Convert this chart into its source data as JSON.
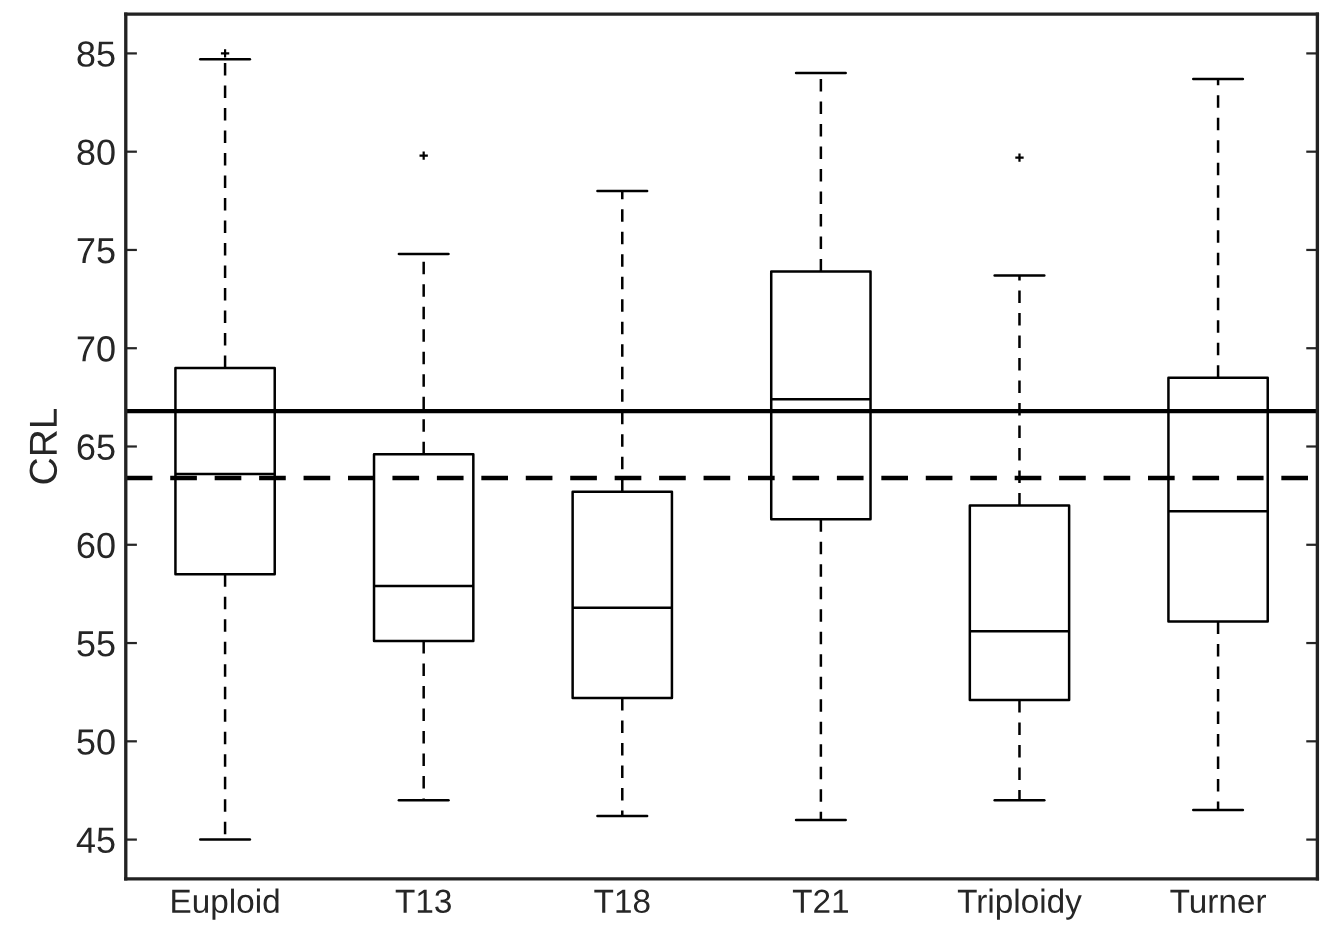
{
  "chart_data": {
    "type": "box",
    "ylabel": "CRL",
    "categories": [
      "Euploid",
      "T13",
      "T18",
      "T21",
      "Triploidy",
      "Turner"
    ],
    "boxes": [
      {
        "low": 45.0,
        "q1": 58.5,
        "median": 63.6,
        "q3": 69.0,
        "high": 84.7,
        "outliers": [
          85.0
        ]
      },
      {
        "low": 47.0,
        "q1": 55.1,
        "median": 57.9,
        "q3": 64.6,
        "high": 74.8,
        "outliers": [
          79.8
        ]
      },
      {
        "low": 46.2,
        "q1": 52.2,
        "median": 56.8,
        "q3": 62.7,
        "high": 78.0
      },
      {
        "low": 46.0,
        "q1": 61.3,
        "median": 67.4,
        "q3": 73.9,
        "high": 84.0
      },
      {
        "low": 47.0,
        "q1": 52.1,
        "median": 55.6,
        "q3": 62.0,
        "high": 73.7,
        "outliers": [
          79.7
        ]
      },
      {
        "low": 46.5,
        "q1": 56.1,
        "median": 61.7,
        "q3": 68.5,
        "high": 83.7
      }
    ],
    "color": "#000000",
    "ylim": [
      43,
      87
    ],
    "yticks": [
      45,
      50,
      55,
      60,
      65,
      70,
      75,
      80,
      85
    ],
    "ref_lines": [
      {
        "axis": "y",
        "value": 66.8,
        "color": "#000000",
        "line_style": "solid"
      },
      {
        "axis": "y",
        "value": 63.4,
        "color": "#000000",
        "line_style": "dashed"
      }
    ],
    "grid": false
  }
}
